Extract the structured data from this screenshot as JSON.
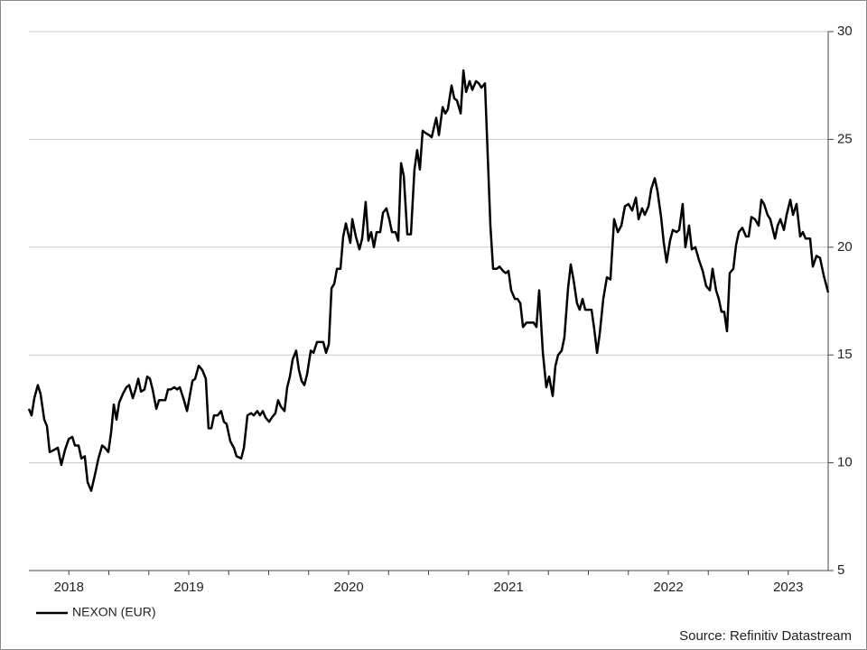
{
  "chart_data": {
    "type": "line",
    "source": "Source: Refinitiv Datastream",
    "series": [
      {
        "name": "NEXON (EUR)",
        "color": "#000000",
        "x": [
          2018.5,
          2018.517,
          2018.534,
          2018.556,
          2018.573,
          2018.596,
          2018.613,
          2018.63,
          2018.658,
          2018.681,
          2018.703,
          2018.726,
          2018.749,
          2018.771,
          2018.788,
          2018.811,
          2018.828,
          2018.85,
          2018.867,
          2018.89,
          2018.912,
          2018.935,
          2018.958,
          2018.975,
          2018.997,
          2019.014,
          2019.031,
          2019.048,
          2019.065,
          2019.088,
          2019.11,
          2019.127,
          2019.15,
          2019.167,
          2019.184,
          2019.201,
          2019.223,
          2019.24,
          2019.257,
          2019.274,
          2019.297,
          2019.314,
          2019.336,
          2019.353,
          2019.37,
          2019.387,
          2019.41,
          2019.427,
          2019.444,
          2019.466,
          2019.489,
          2019.506,
          2019.523,
          2019.54,
          2019.562,
          2019.585,
          2019.607,
          2019.624,
          2019.641,
          2019.658,
          2019.681,
          2019.703,
          2019.72,
          2019.737,
          2019.76,
          2019.782,
          2019.799,
          2019.828,
          2019.845,
          2019.867,
          2019.89,
          2019.907,
          2019.929,
          2019.946,
          2019.963,
          2019.98,
          2020.003,
          2020.02,
          2020.042,
          2020.059,
          2020.076,
          2020.099,
          2020.116,
          2020.133,
          2020.15,
          2020.172,
          2020.189,
          2020.206,
          2020.223,
          2020.24,
          2020.263,
          2020.28,
          2020.302,
          2020.325,
          2020.342,
          2020.359,
          2020.376,
          2020.393,
          2020.41,
          2020.427,
          2020.449,
          2020.466,
          2020.483,
          2020.511,
          2020.523,
          2020.545,
          2020.568,
          2020.585,
          2020.607,
          2020.624,
          2020.641,
          2020.658,
          2020.675,
          2020.698,
          2020.715,
          2020.737,
          2020.754,
          2020.771,
          2020.794,
          2020.811,
          2020.828,
          2020.845,
          2020.867,
          2020.89,
          2020.912,
          2020.929,
          2020.946,
          2020.963,
          2020.98,
          2021.003,
          2021.02,
          2021.048,
          2021.065,
          2021.088,
          2021.105,
          2021.121,
          2021.144,
          2021.161,
          2021.178,
          2021.201,
          2021.218,
          2021.235,
          2021.257,
          2021.274,
          2021.297,
          2021.314,
          2021.331,
          2021.353,
          2021.37,
          2021.387,
          2021.404,
          2021.427,
          2021.444,
          2021.466,
          2021.483,
          2021.5,
          2021.517,
          2021.54,
          2021.557,
          2021.574,
          2021.591,
          2021.613,
          2021.636,
          2021.658,
          2021.675,
          2021.692,
          2021.715,
          2021.737,
          2021.754,
          2021.777,
          2021.794,
          2021.811,
          2021.833,
          2021.85,
          2021.873,
          2021.89,
          2021.907,
          2021.929,
          2021.946,
          2021.963,
          2021.98,
          2021.997,
          2022.02,
          2022.037,
          2022.054,
          2022.071,
          2022.093,
          2022.116,
          2022.138,
          2022.161,
          2022.184,
          2022.206,
          2022.229,
          2022.251,
          2022.274,
          2022.297,
          2022.314,
          2022.336,
          2022.353,
          2022.376,
          2022.393,
          2022.415,
          2022.432,
          2022.455,
          2022.472,
          2022.489,
          2022.511,
          2022.528,
          2022.551,
          2022.568,
          2022.59,
          2022.607,
          2022.63,
          2022.647,
          2022.669,
          2022.692,
          2022.715,
          2022.737,
          2022.76,
          2022.777,
          2022.799,
          2022.816,
          2022.833,
          2022.85,
          2022.867,
          2022.884,
          2022.907,
          2022.924,
          2022.941,
          2022.963,
          2022.986,
          2023.003,
          2023.02,
          2023.042,
          2023.065,
          2023.082,
          2023.099,
          2023.121,
          2023.138,
          2023.167,
          2023.184,
          2023.201,
          2023.223,
          2023.24,
          2023.263,
          2023.28,
          2023.302,
          2023.325,
          2023.342,
          2023.359,
          2023.387,
          2023.404,
          2023.427,
          2023.449,
          2023.472,
          2023.5
        ],
        "values": [
          12.5,
          12.2,
          13.0,
          13.6,
          13.2,
          12.0,
          11.7,
          10.5,
          10.6,
          10.7,
          9.9,
          10.6,
          11.1,
          11.2,
          10.8,
          10.8,
          10.2,
          10.3,
          9.1,
          8.7,
          9.4,
          10.2,
          10.8,
          10.7,
          10.5,
          11.4,
          12.7,
          12.0,
          12.8,
          13.2,
          13.5,
          13.6,
          13.0,
          13.4,
          13.9,
          13.3,
          13.4,
          14.0,
          13.9,
          13.4,
          12.5,
          12.9,
          12.9,
          12.9,
          13.4,
          13.4,
          13.5,
          13.4,
          13.5,
          13.0,
          12.4,
          13.1,
          13.8,
          13.9,
          14.5,
          14.3,
          13.9,
          11.6,
          11.6,
          12.2,
          12.2,
          12.4,
          11.9,
          11.8,
          11.0,
          10.7,
          10.3,
          10.2,
          10.7,
          12.2,
          12.3,
          12.2,
          12.4,
          12.2,
          12.4,
          12.1,
          11.9,
          12.1,
          12.3,
          12.9,
          12.6,
          12.4,
          13.5,
          14.0,
          14.8,
          15.2,
          14.3,
          13.8,
          13.6,
          14.1,
          15.2,
          15.1,
          15.6,
          15.6,
          15.6,
          15.1,
          15.5,
          18.1,
          18.3,
          19.0,
          19.0,
          20.5,
          21.1,
          20.2,
          21.3,
          20.5,
          19.9,
          20.4,
          22.1,
          20.3,
          20.7,
          20.0,
          20.7,
          20.7,
          21.6,
          21.8,
          21.3,
          20.7,
          20.7,
          20.3,
          23.9,
          23.3,
          20.6,
          20.6,
          23.6,
          24.5,
          23.6,
          25.4,
          25.3,
          25.2,
          25.1,
          26.0,
          25.2,
          26.5,
          26.2,
          26.4,
          27.5,
          26.9,
          26.8,
          26.2,
          28.2,
          27.2,
          27.7,
          27.3,
          27.7,
          27.6,
          27.4,
          27.6,
          24.3,
          21.0,
          19.0,
          19.0,
          19.1,
          18.9,
          18.8,
          18.9,
          18.0,
          17.6,
          17.6,
          17.4,
          16.3,
          16.5,
          16.5,
          16.5,
          16.3,
          18.0,
          15.1,
          13.5,
          14.0,
          13.1,
          14.5,
          15.0,
          15.2,
          15.8,
          18.1,
          19.2,
          18.5,
          17.4,
          17.1,
          17.6,
          17.1,
          17.1,
          17.1,
          16.2,
          15.1,
          16.0,
          17.6,
          18.6,
          18.5,
          21.3,
          20.7,
          21.0,
          21.9,
          22.0,
          21.7,
          22.3,
          21.3,
          21.8,
          21.5,
          21.9,
          22.7,
          23.2,
          22.6,
          21.4,
          20.2,
          19.3,
          20.3,
          20.8,
          20.7,
          20.8,
          22.0,
          20.0,
          21.0,
          19.9,
          20.0,
          19.4,
          18.9,
          18.2,
          18.0,
          19.0,
          18.0,
          17.6,
          17.0,
          17.0,
          16.1,
          18.8,
          19.0,
          20.1,
          20.7,
          20.9,
          20.5,
          20.5,
          21.4,
          21.3,
          21.0,
          22.2,
          22.0,
          21.5,
          21.3,
          20.4,
          21.0,
          21.3,
          20.8,
          21.5,
          22.2,
          21.5,
          22.0,
          20.5,
          20.7,
          20.4,
          20.4,
          19.1,
          19.6,
          19.5,
          18.7,
          17.9
        ]
      }
    ],
    "xlim": [
      2018.5,
      2023.5
    ],
    "xticks": [
      {
        "value": 2018.75,
        "label": "2018"
      },
      {
        "value": 2019.5,
        "label": "2019"
      },
      {
        "value": 2020.5,
        "label": "2020"
      },
      {
        "value": 2021.5,
        "label": "2021"
      },
      {
        "value": 2022.5,
        "label": "2022"
      },
      {
        "value": 2023.25,
        "label": "2023"
      }
    ],
    "xminor_ticks": [
      2018.75,
      2019,
      2019.25,
      2019.5,
      2019.75,
      2020,
      2020.25,
      2020.5,
      2020.75,
      2021,
      2021.25,
      2021.5,
      2021.75,
      2022,
      2022.25,
      2022.5,
      2022.75,
      2023,
      2023.25
    ],
    "ylim": [
      5,
      30
    ],
    "yticks": [
      5,
      10,
      15,
      20,
      25,
      30
    ],
    "grid": true,
    "legend": "bottom-left"
  }
}
